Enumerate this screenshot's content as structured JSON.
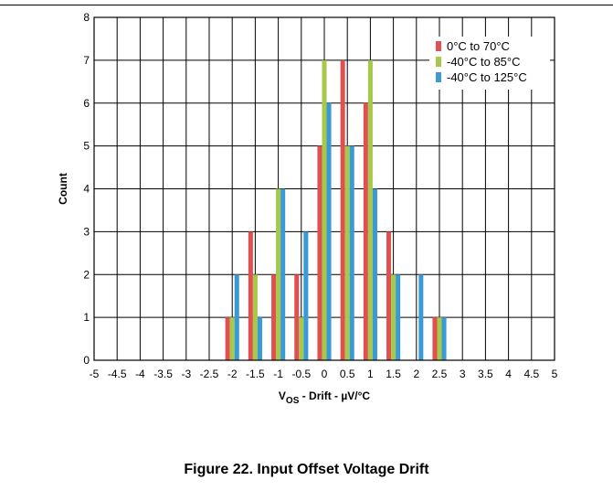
{
  "chart_data": {
    "type": "bar",
    "xlabel": {
      "main": "V",
      "sub": "OS",
      "rest": " - Drift - µV/°C"
    },
    "ylabel": "Count",
    "xlim": [
      -5,
      5
    ],
    "ylim": [
      0,
      8
    ],
    "x_ticks": [
      "-5",
      "-4.5",
      "-4",
      "-3.5",
      "-3",
      "-2.5",
      "-2",
      "-1.5",
      "-1",
      "-0.5",
      "0",
      "0.5",
      "1",
      "1.5",
      "2",
      "2.5",
      "3",
      "3.5",
      "4",
      "4.5",
      "5"
    ],
    "y_ticks": [
      "0",
      "1",
      "2",
      "3",
      "4",
      "5",
      "6",
      "7",
      "8"
    ],
    "grid": true,
    "legend_position": "top-right",
    "bin_centers": [
      -2,
      -1.5,
      -1,
      -0.5,
      0,
      0.5,
      1,
      1.5,
      2,
      2.5
    ],
    "series": [
      {
        "name": "0°C to 70°C",
        "color": "#e05050",
        "values": [
          1,
          3,
          2,
          2,
          5,
          7,
          6,
          3,
          0,
          1
        ]
      },
      {
        "name": "-40°C to 85°C",
        "color": "#a8c84a",
        "values": [
          1,
          2,
          4,
          1,
          7,
          5,
          7,
          2,
          0,
          1
        ]
      },
      {
        "name": "-40°C to 125°C",
        "color": "#3a9ad6",
        "values": [
          2,
          1,
          4,
          3,
          6,
          5,
          4,
          2,
          2,
          1
        ]
      }
    ]
  },
  "caption": "Figure 22. Input Offset Voltage Drift"
}
